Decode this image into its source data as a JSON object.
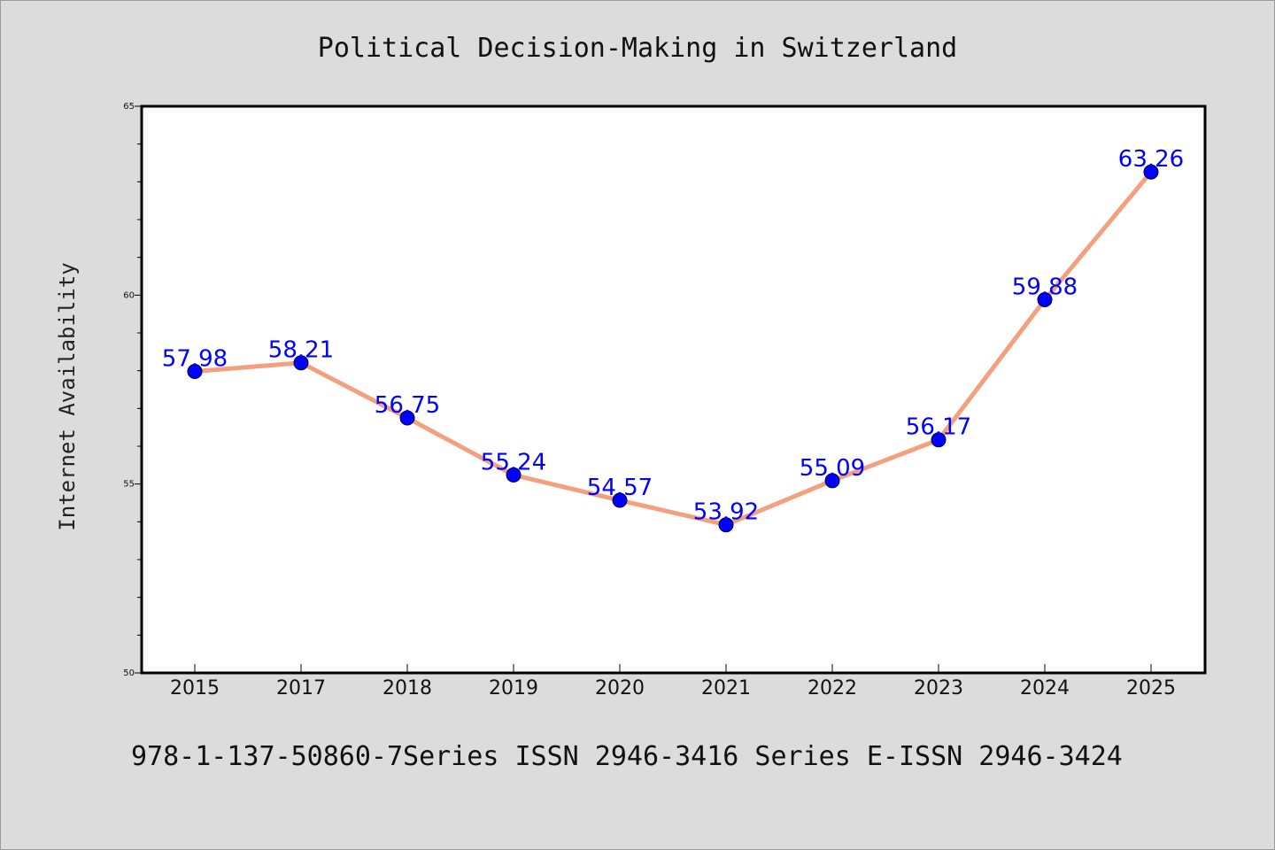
{
  "chart_data": {
    "type": "line",
    "title": "Political Decision-Making in Switzerland",
    "xlabel": "",
    "ylabel": "Internet Availability",
    "categories": [
      "2015",
      "2017",
      "2018",
      "2019",
      "2020",
      "2021",
      "2022",
      "2023",
      "2024",
      "2025"
    ],
    "series": [
      {
        "values": [
          57.98,
          58.21,
          56.75,
          55.24,
          54.57,
          53.92,
          55.09,
          56.17,
          59.88,
          63.26
        ],
        "data_labels": [
          "57.98",
          "58.21",
          "56.75",
          "55.24",
          "54.57",
          "53.92",
          "55.09",
          "56.17",
          "59.88",
          "63.26"
        ],
        "line_color": "#f4a07e",
        "marker_color": "#0000ff"
      }
    ],
    "ylim": [
      50,
      65
    ],
    "yticks": [
      50,
      55,
      60,
      65
    ],
    "ytick_labels": [
      "50",
      "55",
      "60",
      "65"
    ],
    "grid": false,
    "legend": "none"
  },
  "footer": {
    "text": "978-1-137-50860-7Series ISSN 2946-3416 Series E-ISSN 2946-3424"
  },
  "colors": {
    "background": "#dcdcdc",
    "plot_background": "#ffffff",
    "line": "#f4a07e",
    "marker": "#0000ff",
    "data_label": "#0000ff"
  }
}
